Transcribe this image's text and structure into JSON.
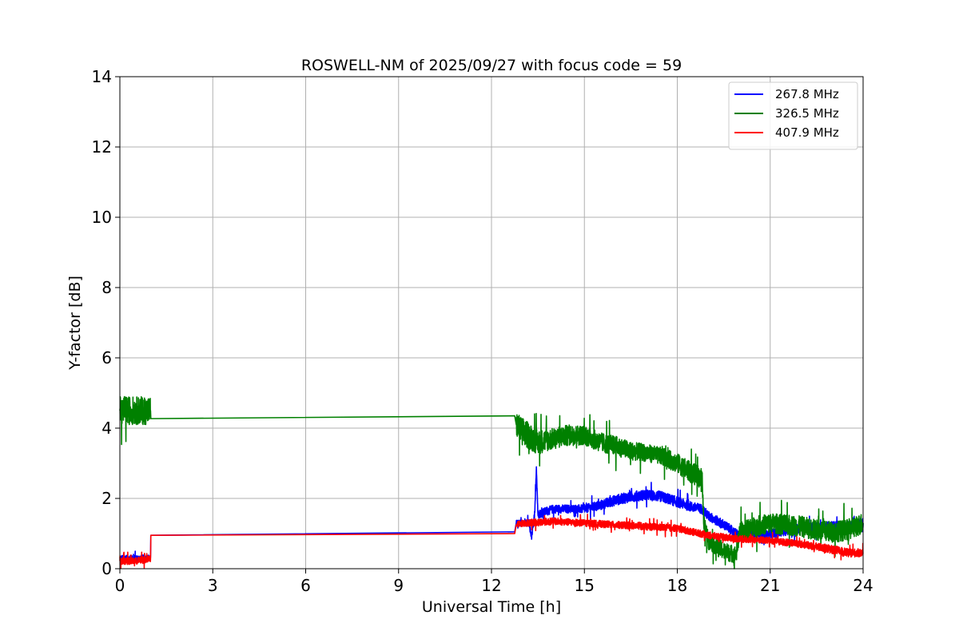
{
  "chart_data": {
    "type": "line",
    "title": "ROSWELL-NM of 2025/09/27 with focus code = 59",
    "xlabel": "Universal Time [h]",
    "ylabel": "Y-factor [dB]",
    "xlim": [
      0,
      24
    ],
    "ylim": [
      0,
      14
    ],
    "xticks": [
      0,
      3,
      6,
      9,
      12,
      15,
      18,
      21,
      24
    ],
    "yticks": [
      0,
      2,
      4,
      6,
      8,
      10,
      12,
      14
    ],
    "grid": true,
    "legend_position": "top-right",
    "series": [
      {
        "name": "267.8 MHz",
        "color": "#0000ff",
        "x": [
          0,
          0.5,
          0.99,
          1.0,
          12.75,
          12.8,
          13.2,
          13.3,
          13.4,
          13.45,
          13.5,
          14,
          15,
          15.5,
          16,
          16.5,
          17,
          17.5,
          18,
          18.5,
          18.8,
          19.0,
          19.5,
          20,
          20.5,
          21,
          22,
          23,
          23.5,
          24
        ],
        "values": [
          0.3,
          0.3,
          0.32,
          0.95,
          1.05,
          1.3,
          1.3,
          0.9,
          1.6,
          2.9,
          1.55,
          1.7,
          1.7,
          1.8,
          1.95,
          2.05,
          2.1,
          2.05,
          1.9,
          1.75,
          1.7,
          1.5,
          1.25,
          0.95,
          0.95,
          1.0,
          1.15,
          1.2,
          1.2,
          1.3
        ],
        "noise": [
          0.08,
          0.08,
          0.08,
          0,
          0,
          0.08,
          0.1,
          0.1,
          0.1,
          0.1,
          0.12,
          0.12,
          0.12,
          0.14,
          0.15,
          0.15,
          0.15,
          0.15,
          0.15,
          0.14,
          0.14,
          0.14,
          0.14,
          0.12,
          0.12,
          0.12,
          0.14,
          0.15,
          0.15,
          0.15
        ]
      },
      {
        "name": "326.5 MHz",
        "color": "#008000",
        "x": [
          0,
          0.5,
          0.99,
          1.0,
          12.75,
          12.8,
          13.0,
          13.5,
          14,
          14.5,
          15,
          15.5,
          16,
          16.5,
          17,
          17.5,
          18,
          18.5,
          18.8,
          18.85,
          19.0,
          19.5,
          19.9,
          20.0,
          20.5,
          21,
          22,
          22.5,
          23,
          23.5,
          24
        ],
        "values": [
          4.5,
          4.5,
          4.5,
          4.27,
          4.35,
          4.1,
          3.9,
          3.6,
          3.7,
          3.8,
          3.8,
          3.6,
          3.5,
          3.35,
          3.3,
          3.2,
          3.0,
          2.7,
          2.6,
          1.3,
          0.8,
          0.5,
          0.4,
          1.0,
          1.2,
          1.3,
          1.2,
          1.1,
          1.05,
          1.1,
          1.3
        ],
        "noise": [
          0.4,
          0.4,
          0.4,
          0,
          0,
          0.35,
          0.4,
          0.35,
          0.3,
          0.3,
          0.28,
          0.28,
          0.28,
          0.26,
          0.25,
          0.25,
          0.28,
          0.3,
          0.3,
          0.25,
          0.25,
          0.25,
          0.25,
          0.3,
          0.28,
          0.28,
          0.3,
          0.3,
          0.3,
          0.3,
          0.3
        ]
      },
      {
        "name": "407.9 MHz",
        "color": "#ff0000",
        "x": [
          0,
          0.5,
          0.99,
          1.0,
          12.75,
          12.8,
          13,
          14,
          15,
          16,
          17,
          18,
          18.5,
          19,
          19.5,
          20,
          21,
          22,
          23,
          23.5,
          24
        ],
        "values": [
          0.22,
          0.22,
          0.28,
          0.95,
          1.0,
          1.25,
          1.3,
          1.35,
          1.3,
          1.25,
          1.2,
          1.15,
          1.05,
          0.95,
          0.9,
          0.85,
          0.8,
          0.7,
          0.55,
          0.45,
          0.45
        ],
        "noise": [
          0.1,
          0.1,
          0.1,
          0,
          0,
          0.08,
          0.1,
          0.1,
          0.1,
          0.1,
          0.1,
          0.1,
          0.1,
          0.1,
          0.1,
          0.1,
          0.1,
          0.1,
          0.12,
          0.12,
          0.12
        ]
      }
    ]
  }
}
